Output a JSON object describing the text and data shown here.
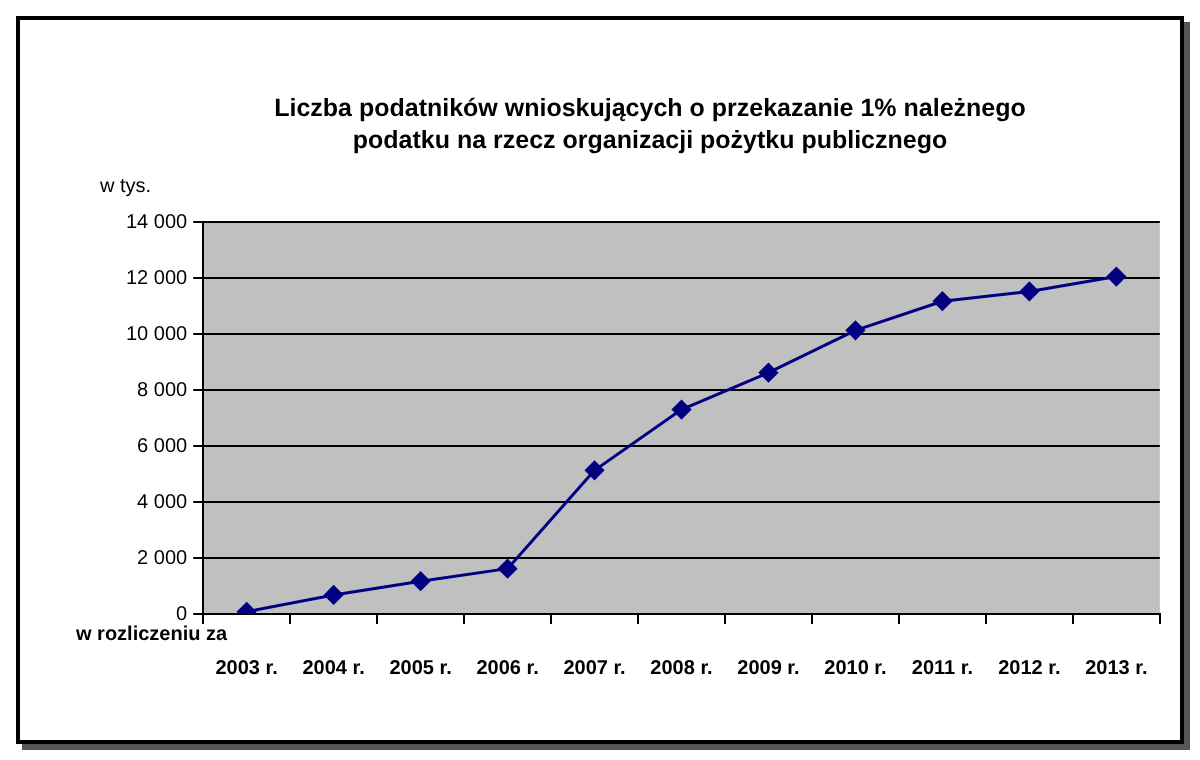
{
  "chart_data": {
    "type": "line",
    "title": "Liczba podatników wnioskujących o przekazanie 1% należnego podatku na rzecz organizacji pożytku publicznego",
    "ylabel": "w tys.",
    "xlabel": "w rozliczeniu za",
    "categories": [
      "2003 r.",
      "2004 r.",
      "2005 r.",
      "2006 r.",
      "2007 r.",
      "2008 r.",
      "2009 r.",
      "2010 r.",
      "2011 r.",
      "2012 r.",
      "2013 r."
    ],
    "series": [
      {
        "color": "#000080",
        "values": [
          80,
          680,
          1170,
          1620,
          5130,
          7300,
          8620,
          10130,
          11170,
          11520,
          12050
        ]
      }
    ],
    "ylim": [
      0,
      14000
    ],
    "yticks": [
      {
        "value": 0,
        "label": "0"
      },
      {
        "value": 2000,
        "label": "2 000"
      },
      {
        "value": 4000,
        "label": "4 000"
      },
      {
        "value": 6000,
        "label": "6 000"
      },
      {
        "value": 8000,
        "label": "8 000"
      },
      {
        "value": 10000,
        "label": "10 000"
      },
      {
        "value": 12000,
        "label": "12 000"
      },
      {
        "value": 14000,
        "label": "14 000"
      }
    ],
    "grid": "y",
    "legend": false,
    "marker": "diamond",
    "line_style": "solid"
  }
}
